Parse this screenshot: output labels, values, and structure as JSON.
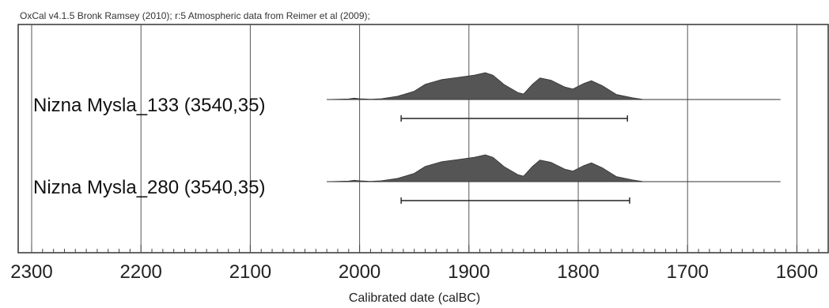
{
  "chart_data": {
    "type": "area",
    "title": "OxCal v4.1.5 Bronk Ramsey (2010); r:5 Atmospheric data from Reimer et al (2009);",
    "xlabel": "Calibrated date (calBC)",
    "xlim": [
      2300,
      1550
    ],
    "x_reversed": true,
    "x_ticks": [
      2300,
      2200,
      2100,
      2000,
      1900,
      1800,
      1700,
      1600
    ],
    "x_tick_labels": [
      "2300",
      "2200",
      "2100",
      "2000",
      "1900",
      "1800",
      "1700",
      "1600"
    ],
    "minor_tick_step": 10,
    "grid": "vertical",
    "fill_color": "#555555",
    "series": [
      {
        "name": "Nizna Mysla_133 (3540,35)",
        "baseline_range": [
          2030,
          1615
        ],
        "range": [
          1962,
          1755
        ],
        "density": [
          [
            2030,
            0
          ],
          [
            2010,
            0.02
          ],
          [
            2005,
            0.05
          ],
          [
            2000,
            0.03
          ],
          [
            1990,
            0.01
          ],
          [
            1980,
            0.03
          ],
          [
            1965,
            0.12
          ],
          [
            1950,
            0.3
          ],
          [
            1940,
            0.55
          ],
          [
            1925,
            0.72
          ],
          [
            1910,
            0.8
          ],
          [
            1895,
            0.88
          ],
          [
            1885,
            0.97
          ],
          [
            1878,
            0.88
          ],
          [
            1868,
            0.55
          ],
          [
            1855,
            0.25
          ],
          [
            1850,
            0.2
          ],
          [
            1842,
            0.55
          ],
          [
            1835,
            0.78
          ],
          [
            1825,
            0.7
          ],
          [
            1812,
            0.45
          ],
          [
            1805,
            0.38
          ],
          [
            1795,
            0.58
          ],
          [
            1788,
            0.68
          ],
          [
            1778,
            0.5
          ],
          [
            1765,
            0.18
          ],
          [
            1750,
            0.06
          ],
          [
            1740,
            0
          ]
        ]
      },
      {
        "name": "Nizna Mysla_280 (3540,35)",
        "baseline_range": [
          2030,
          1615
        ],
        "range": [
          1962,
          1753
        ],
        "density": [
          [
            2030,
            0
          ],
          [
            2010,
            0.02
          ],
          [
            2005,
            0.05
          ],
          [
            2000,
            0.03
          ],
          [
            1990,
            0.01
          ],
          [
            1980,
            0.03
          ],
          [
            1965,
            0.12
          ],
          [
            1950,
            0.3
          ],
          [
            1940,
            0.55
          ],
          [
            1925,
            0.72
          ],
          [
            1910,
            0.8
          ],
          [
            1895,
            0.88
          ],
          [
            1885,
            0.97
          ],
          [
            1878,
            0.88
          ],
          [
            1868,
            0.55
          ],
          [
            1855,
            0.25
          ],
          [
            1850,
            0.2
          ],
          [
            1842,
            0.55
          ],
          [
            1835,
            0.78
          ],
          [
            1825,
            0.7
          ],
          [
            1812,
            0.45
          ],
          [
            1805,
            0.38
          ],
          [
            1795,
            0.58
          ],
          [
            1788,
            0.68
          ],
          [
            1778,
            0.5
          ],
          [
            1765,
            0.18
          ],
          [
            1750,
            0.06
          ],
          [
            1740,
            0
          ]
        ]
      }
    ]
  }
}
